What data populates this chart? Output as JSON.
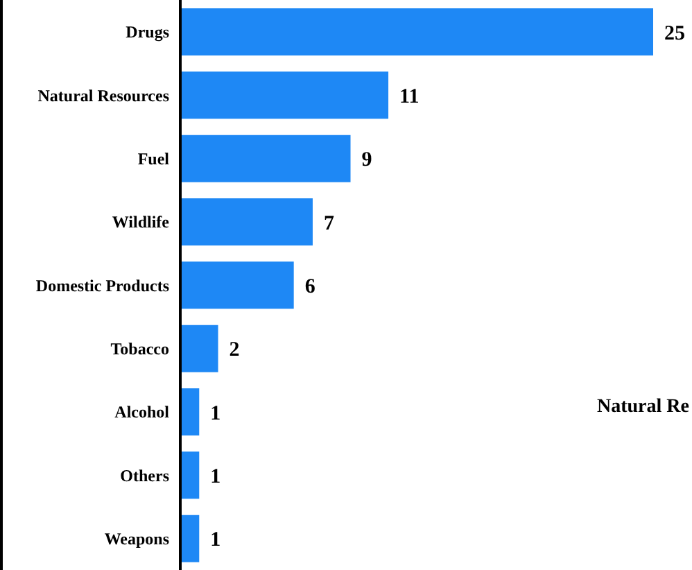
{
  "chart_data": {
    "type": "bar",
    "orientation": "horizontal",
    "categories": [
      "Drugs",
      "Natural Resources",
      "Fuel",
      "Wildlife",
      "Domestic Products",
      "Tobacco",
      "Alcohol",
      "Others",
      "Weapons"
    ],
    "values": [
      25,
      11,
      9,
      7,
      6,
      2,
      1,
      1,
      1
    ],
    "color": "#1e88f5",
    "data_labels": true,
    "annotations": [
      "Natural Re"
    ]
  }
}
